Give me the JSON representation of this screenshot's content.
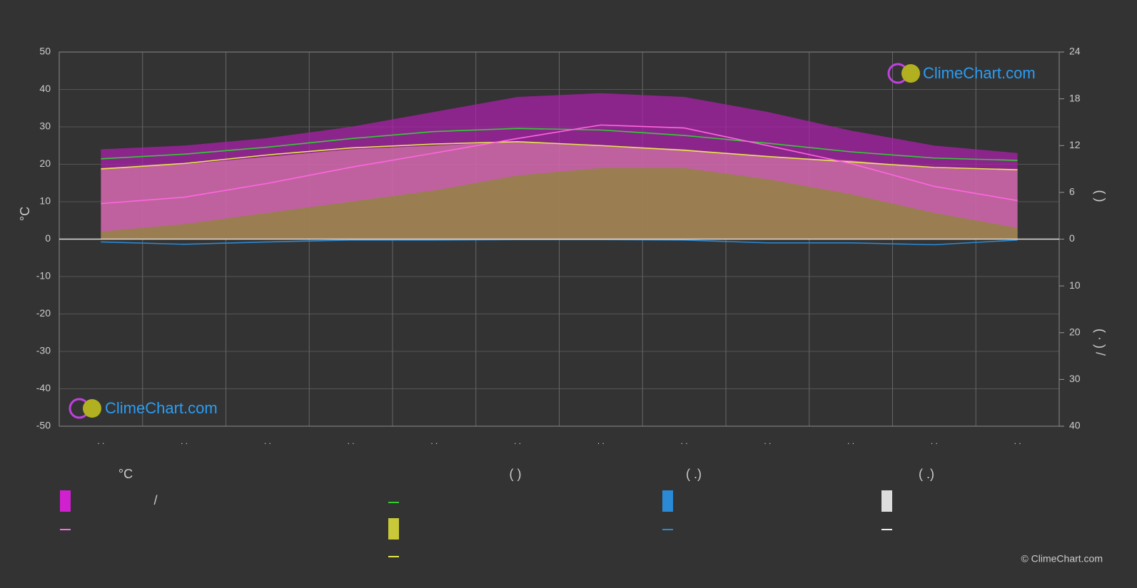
{
  "chart_data": {
    "type": "line",
    "ylabel": "°C",
    "categories": [
      ". .",
      ". .",
      ". .",
      ". .",
      ". .",
      ". .",
      ". .",
      ". .",
      ". .",
      ". .",
      ". .",
      ". ."
    ],
    "ylim": [
      -50,
      50
    ],
    "yticks": [
      -50,
      -40,
      -30,
      -20,
      -10,
      0,
      10,
      20,
      30,
      40,
      50
    ],
    "y2lim": [
      0,
      24
    ],
    "y2ticks": [
      0,
      6,
      12,
      18,
      24
    ],
    "y3lim": [
      0,
      40
    ],
    "y3ticks": [
      10,
      20,
      30,
      40
    ],
    "y2label": "(      )",
    "y3label": "(  ·  )    /",
    "grid": true,
    "series": [
      {
        "kind": "area",
        "axis": "y",
        "color": "#b020b0",
        "values": [
          24,
          25,
          27,
          30,
          34,
          38,
          39,
          38,
          34,
          29,
          25,
          23
        ]
      },
      {
        "kind": "area",
        "axis": "y",
        "color": "#d67aa8",
        "values": [
          19,
          20,
          22,
          24,
          25,
          26,
          25,
          24,
          22,
          21,
          19,
          18.5
        ]
      },
      {
        "kind": "area",
        "axis": "y",
        "color": "#8a8a30",
        "values": [
          2,
          4,
          7,
          10,
          13,
          17,
          19,
          19,
          16,
          12,
          7,
          3
        ]
      },
      {
        "kind": "line",
        "axis": "y2",
        "color": "#33cc33",
        "values": [
          10.3,
          10.9,
          11.8,
          12.9,
          13.8,
          14.2,
          14.0,
          13.3,
          12.3,
          11.2,
          10.4,
          10.1
        ]
      },
      {
        "kind": "line",
        "axis": "y2",
        "color": "#e6e64d",
        "values": [
          9.0,
          9.7,
          10.8,
          11.7,
          12.2,
          12.5,
          12.0,
          11.4,
          10.6,
          9.9,
          9.2,
          8.9
        ]
      },
      {
        "kind": "line",
        "axis": "y",
        "color": "#ff66e0",
        "values": [
          9.5,
          11.2,
          14.9,
          19.2,
          23,
          26.9,
          30.5,
          29.7,
          25,
          20.2,
          14.1,
          10.3
        ]
      },
      {
        "kind": "line",
        "axis": "y3",
        "color": "#2a8ad6",
        "values": [
          0.6,
          1.1,
          0.6,
          0.2,
          0.2,
          0.1,
          0.1,
          0.2,
          0.8,
          0.8,
          1.2,
          0.2
        ]
      }
    ],
    "legend_headers": [
      "°C",
      "(          )",
      "(   .)",
      "(   .)"
    ],
    "legend_item_text": "/",
    "watermark": "ClimeChart.com",
    "copyright": "© ClimeChart.com"
  }
}
